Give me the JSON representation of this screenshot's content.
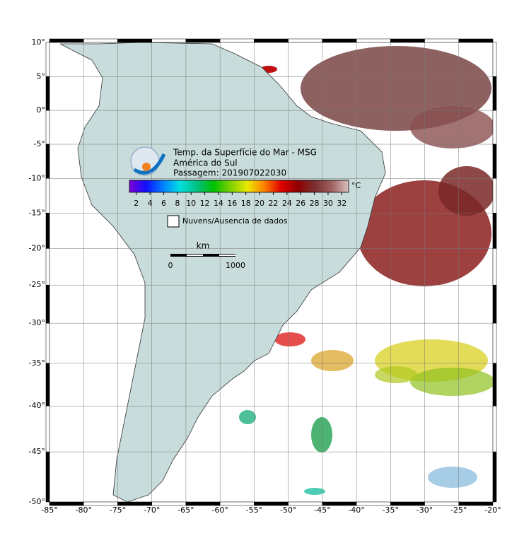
{
  "map": {
    "title": "Temp. da Superfície do Mar - MSG",
    "region": "América do Sul",
    "pass": "Passagem: 201907022030",
    "lat_ticks": [
      {
        "value": 10,
        "label": "10°"
      },
      {
        "value": 5,
        "label": "5°"
      },
      {
        "value": 0,
        "label": "0°"
      },
      {
        "value": -5,
        "label": "-5°"
      },
      {
        "value": -10,
        "label": "-10°"
      },
      {
        "value": -15,
        "label": "-15°"
      },
      {
        "value": -20,
        "label": "-20°"
      },
      {
        "value": -25,
        "label": "-25°"
      },
      {
        "value": -30,
        "label": "-30°"
      },
      {
        "value": -35,
        "label": "-35°"
      },
      {
        "value": -40,
        "label": "-40°"
      },
      {
        "value": -45,
        "label": "-45°"
      },
      {
        "value": -50,
        "label": "-50°"
      }
    ],
    "lon_ticks": [
      {
        "value": -85,
        "label": "-85°"
      },
      {
        "value": -80,
        "label": "-80°"
      },
      {
        "value": -75,
        "label": "-75°"
      },
      {
        "value": -70,
        "label": "-70°"
      },
      {
        "value": -65,
        "label": "-65°"
      },
      {
        "value": -60,
        "label": "-60°"
      },
      {
        "value": -55,
        "label": "-55°"
      },
      {
        "value": -50,
        "label": "-50°"
      },
      {
        "value": -45,
        "label": "-45°"
      },
      {
        "value": -40,
        "label": "-40°"
      },
      {
        "value": -35,
        "label": "-35°"
      },
      {
        "value": -30,
        "label": "-30°"
      },
      {
        "value": -25,
        "label": "-25°"
      },
      {
        "value": -20,
        "label": "-20°"
      }
    ],
    "colorbar": {
      "range": [
        1,
        33
      ],
      "ticks": [
        2,
        4,
        6,
        8,
        10,
        12,
        14,
        16,
        18,
        20,
        22,
        24,
        26,
        28,
        30,
        32
      ],
      "unit": "°C",
      "colors": [
        "#7b00d4",
        "#1010ff",
        "#0080ff",
        "#00e0e0",
        "#00c080",
        "#00c000",
        "#80d000",
        "#e8e800",
        "#ff8000",
        "#e00000",
        "#900000",
        "#7a3030",
        "#a06060",
        "#d8c0c0"
      ]
    },
    "legend": "Nuvens/Ausencia de dados",
    "scale": {
      "unit": "km",
      "start": "0",
      "end": "1000"
    }
  }
}
